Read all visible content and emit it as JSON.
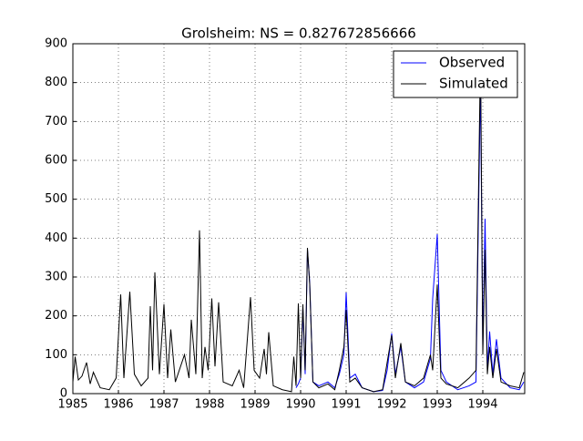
{
  "chart_data": {
    "type": "line",
    "title": "Grolsheim: NS = 0.827672856666",
    "x": [
      1985.0,
      1985.05,
      1985.12,
      1985.2,
      1985.3,
      1985.38,
      1985.45,
      1985.6,
      1985.8,
      1985.95,
      1986.05,
      1986.12,
      1986.25,
      1986.35,
      1986.5,
      1986.65,
      1986.7,
      1986.75,
      1986.8,
      1986.9,
      1987.0,
      1987.08,
      1987.15,
      1987.25,
      1987.45,
      1987.55,
      1987.6,
      1987.7,
      1987.78,
      1987.84,
      1987.9,
      1987.97,
      1988.05,
      1988.12,
      1988.2,
      1988.3,
      1988.5,
      1988.65,
      1988.75,
      1988.9,
      1988.98,
      1989.1,
      1989.2,
      1989.25,
      1989.3,
      1989.4,
      1989.6,
      1989.8,
      1989.85,
      1989.9,
      1989.95,
      1990.0,
      1990.05,
      1990.1,
      1990.15,
      1990.2,
      1990.27,
      1990.4,
      1990.6,
      1990.75,
      1990.85,
      1990.95,
      1991.0,
      1991.08,
      1991.2,
      1991.35,
      1991.6,
      1991.8,
      1991.9,
      1992.0,
      1992.08,
      1992.2,
      1992.3,
      1992.5,
      1992.7,
      1992.85,
      1992.9,
      1993.0,
      1993.08,
      1993.2,
      1993.45,
      1993.7,
      1993.85,
      1993.95,
      1994.0,
      1994.05,
      1994.1,
      1994.15,
      1994.22,
      1994.3,
      1994.4,
      1994.6,
      1994.8,
      1994.9
    ],
    "series": [
      {
        "name": "Observed",
        "color": "#0000ff",
        "values": [
          null,
          null,
          null,
          null,
          null,
          null,
          null,
          null,
          null,
          null,
          null,
          null,
          null,
          null,
          null,
          null,
          null,
          null,
          null,
          null,
          null,
          null,
          null,
          null,
          null,
          null,
          null,
          null,
          null,
          null,
          null,
          null,
          null,
          null,
          null,
          null,
          null,
          null,
          null,
          null,
          null,
          null,
          null,
          null,
          null,
          null,
          null,
          null,
          null,
          15,
          25,
          40,
          220,
          50,
          370,
          285,
          30,
          20,
          30,
          15,
          50,
          100,
          260,
          40,
          50,
          15,
          5,
          8,
          60,
          155,
          50,
          120,
          30,
          15,
          30,
          90,
          245,
          410,
          60,
          30,
          10,
          20,
          30,
          800,
          120,
          450,
          60,
          160,
          50,
          140,
          40,
          15,
          10,
          30
        ]
      },
      {
        "name": "Simulated",
        "color": "#000000",
        "values": [
          30,
          95,
          35,
          45,
          80,
          25,
          55,
          15,
          10,
          40,
          255,
          40,
          262,
          50,
          20,
          40,
          225,
          60,
          312,
          50,
          230,
          40,
          165,
          30,
          100,
          40,
          190,
          50,
          420,
          40,
          120,
          60,
          245,
          70,
          235,
          30,
          20,
          60,
          15,
          248,
          60,
          40,
          115,
          50,
          158,
          20,
          10,
          5,
          95,
          20,
          232,
          40,
          230,
          60,
          375,
          280,
          30,
          15,
          25,
          10,
          60,
          120,
          215,
          30,
          40,
          15,
          5,
          10,
          80,
          150,
          40,
          130,
          30,
          20,
          40,
          100,
          60,
          280,
          40,
          25,
          15,
          40,
          60,
          880,
          100,
          370,
          50,
          120,
          40,
          115,
          30,
          20,
          15,
          55
        ]
      }
    ],
    "xlim": [
      1985,
      1994.92
    ],
    "ylim": [
      0,
      900
    ],
    "xticks": [
      1985,
      1986,
      1987,
      1988,
      1989,
      1990,
      1991,
      1992,
      1993,
      1994
    ],
    "yticks": [
      0,
      100,
      200,
      300,
      400,
      500,
      600,
      700,
      800,
      900
    ],
    "grid": true,
    "legend": "upper right"
  }
}
